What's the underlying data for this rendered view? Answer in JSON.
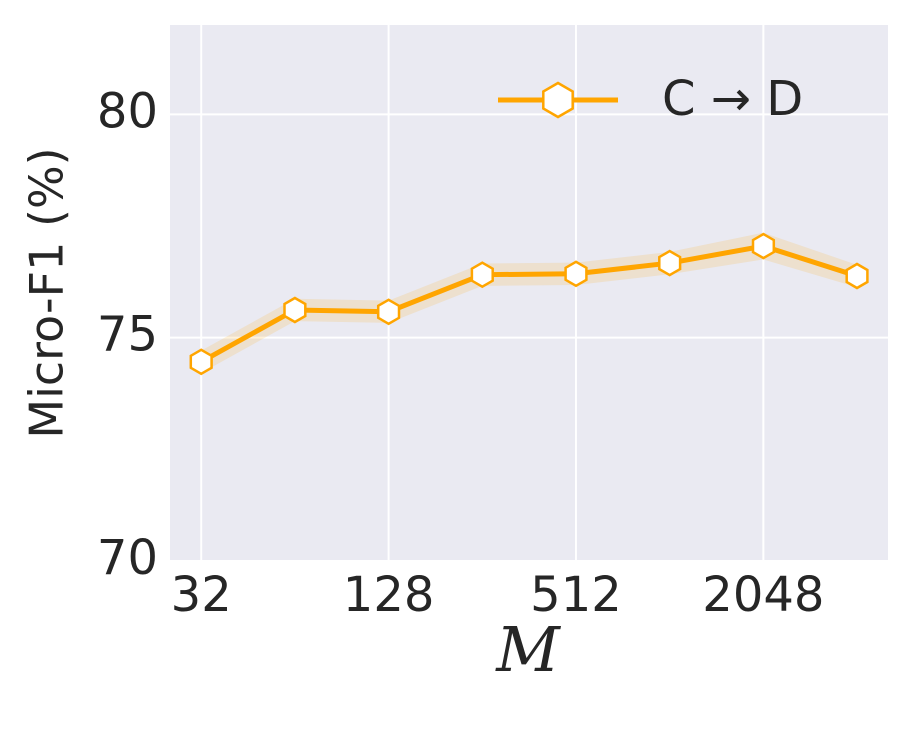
{
  "chart_data": {
    "type": "line",
    "x": [
      32,
      64,
      128,
      256,
      512,
      1024,
      2048,
      4096
    ],
    "series": [
      {
        "name": "C → D",
        "color": "#ffa500",
        "values": [
          74.46,
          75.62,
          75.58,
          76.41,
          76.43,
          76.67,
          77.05,
          76.38
        ],
        "errors": [
          0.25,
          0.25,
          0.25,
          0.25,
          0.25,
          0.25,
          0.3,
          0.25
        ]
      }
    ],
    "xlabel": "M",
    "ylabel": "Micro-F1 (%)",
    "xscale": "log2",
    "xlim": [
      25.4,
      5150
    ],
    "xticks": [
      32,
      128,
      512,
      2048
    ],
    "ylim": [
      70,
      82
    ],
    "yticks": [
      70,
      75,
      80
    ],
    "grid": true,
    "legend": "upper right",
    "background": "#eaeaf2"
  }
}
